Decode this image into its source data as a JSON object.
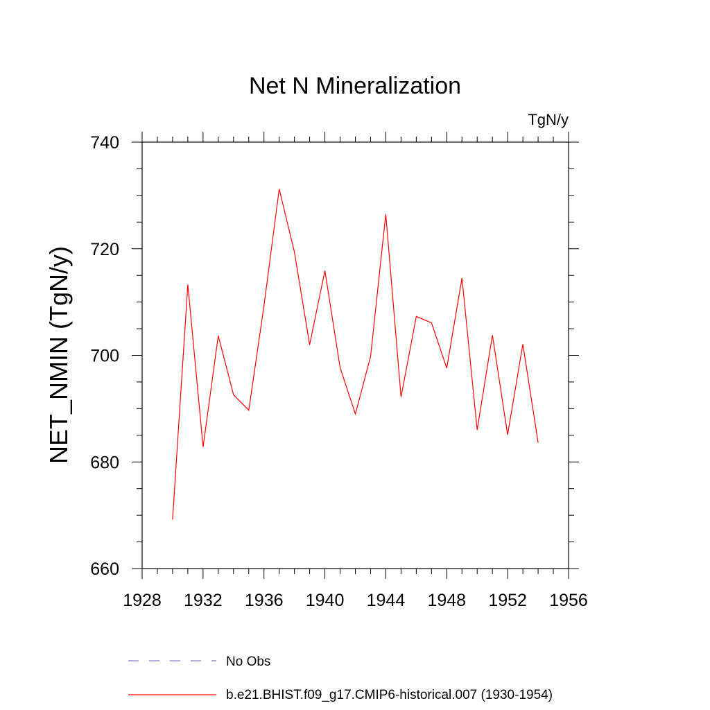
{
  "chart_data": {
    "type": "line",
    "title": "Net N Mineralization",
    "units": "TgN/y",
    "ylabel": "NET_NMIN  (TgN/y)",
    "xlabel": "",
    "xlim": [
      1928,
      1956
    ],
    "ylim": [
      660,
      740
    ],
    "xticks": [
      1928,
      1932,
      1936,
      1940,
      1944,
      1948,
      1952,
      1956
    ],
    "yticks": [
      660,
      680,
      700,
      720,
      740
    ],
    "xminor_step": 1,
    "yminor_step": 5,
    "legend_placement": "bottom",
    "series": [
      {
        "name": "b.e21.BHIST.f09_g17.CMIP6-historical.007 (1930-1954)",
        "color": "#ff0000",
        "style": "solid",
        "x": [
          1930,
          1931,
          1932,
          1933,
          1934,
          1935,
          1936,
          1937,
          1938,
          1939,
          1940,
          1941,
          1942,
          1943,
          1944,
          1945,
          1946,
          1947,
          1948,
          1949,
          1950,
          1951,
          1952,
          1953,
          1954
        ],
        "y": [
          669.2,
          713.3,
          682.8,
          703.7,
          692.6,
          689.7,
          709.3,
          731.2,
          719.4,
          702.0,
          715.9,
          697.7,
          689.0,
          699.8,
          726.5,
          692.2,
          707.3,
          706.1,
          697.6,
          714.5,
          686.0,
          703.8,
          685.1,
          702.1,
          683.6
        ]
      },
      {
        "name": "No Obs",
        "color": "#7f7fc0",
        "style": "dashed",
        "x": [],
        "y": []
      }
    ]
  }
}
